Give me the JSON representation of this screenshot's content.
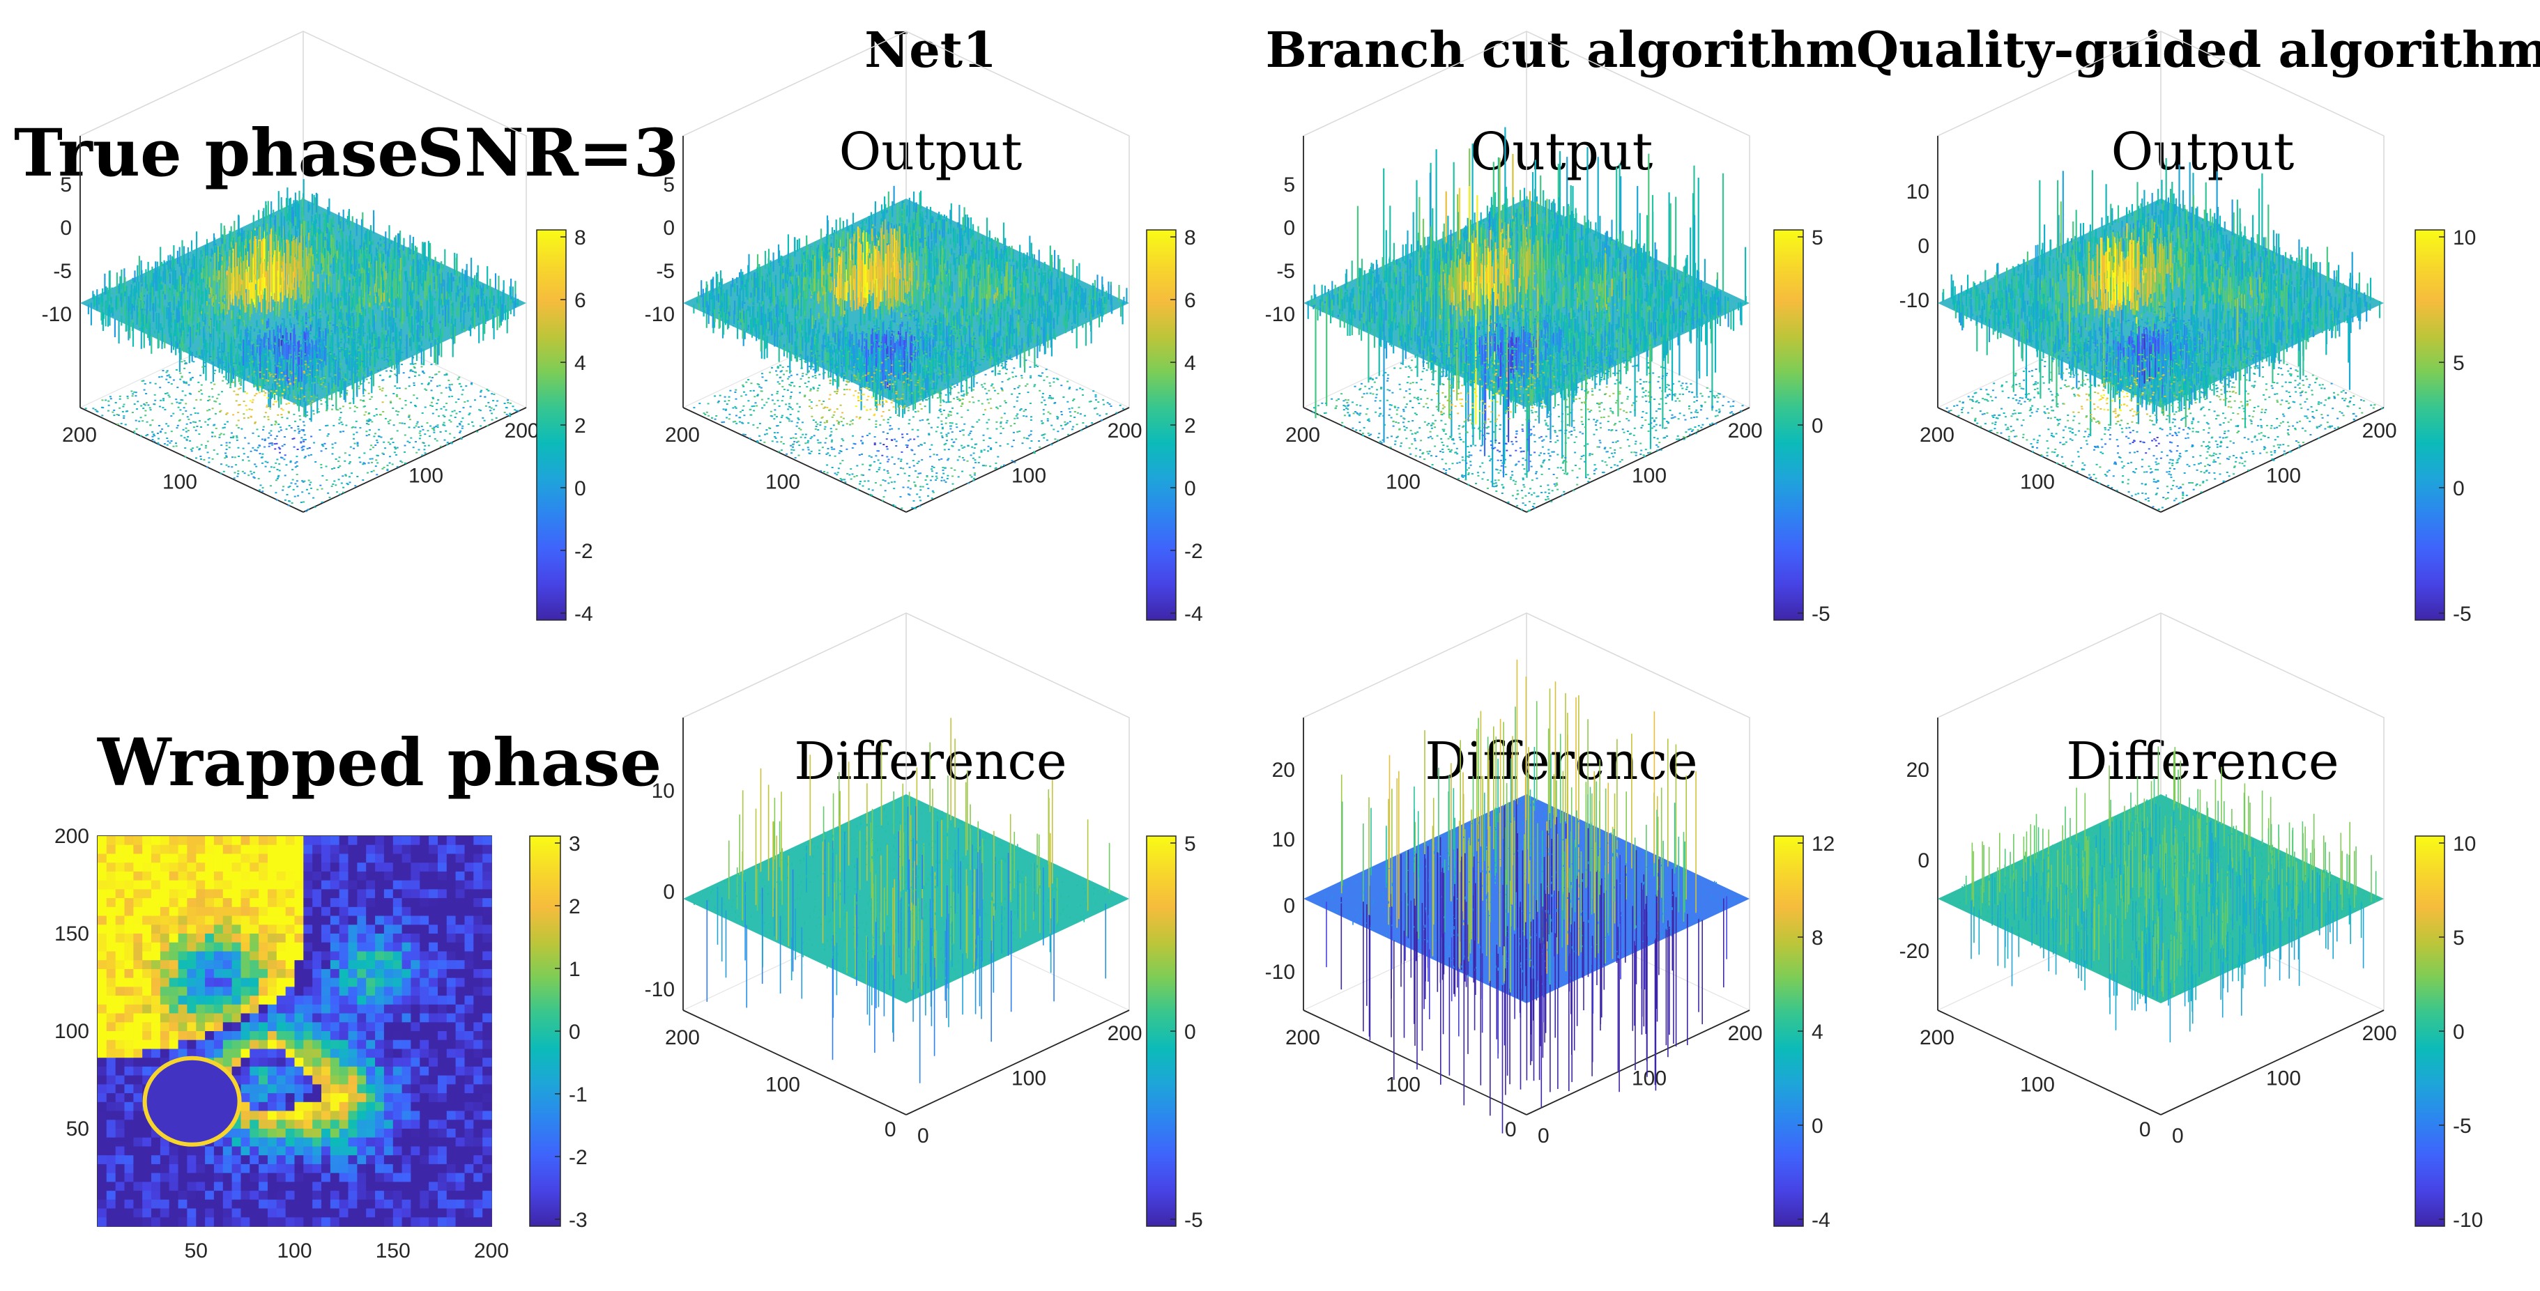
{
  "col_titles": [
    "Net1",
    "Branch cut algorithm",
    "Quality-guided algorithm"
  ],
  "row_titles": {
    "true_phase": "True phase",
    "snr": "SNR=3",
    "wrapped_phase": "Wrapped phase"
  },
  "sub_titles": {
    "output": "Output",
    "difference": "Difference"
  },
  "colors": {
    "parula": [
      "#3e26a8",
      "#4743e5",
      "#3f63fc",
      "#2d85f0",
      "#1ea5d9",
      "#0cbbb9",
      "#37c68f",
      "#7ccd57",
      "#bec539",
      "#f6bc3d",
      "#f7d82b",
      "#f9fb15"
    ]
  },
  "chart_data": [
    {
      "id": "true-phase",
      "type": "surface3d",
      "zticks": [
        "5",
        "0",
        "-5",
        "-10"
      ],
      "xticks": [
        "100",
        "200"
      ],
      "yticks": [
        "200",
        "100"
      ],
      "cbar_ticks": [
        "8",
        "6",
        "4",
        "2",
        "0",
        "-2",
        "-4"
      ],
      "peaks": [
        [
          0.42,
          0.38,
          0.5
        ],
        [
          0.62,
          0.32,
          0.35
        ],
        [
          0.3,
          0.62,
          -0.25
        ],
        [
          0.7,
          0.65,
          0.2
        ]
      ]
    },
    {
      "id": "wrapped-phase",
      "type": "heatmap",
      "xticks": [
        "50",
        "100",
        "150",
        "200"
      ],
      "yticks": [
        "200",
        "150",
        "100",
        "50"
      ],
      "cbar_ticks": [
        "3",
        "2",
        "1",
        "0",
        "-1",
        "-2",
        "-3"
      ]
    },
    {
      "id": "net1-output",
      "type": "surface3d",
      "zticks": [
        "5",
        "0",
        "-5",
        "-10"
      ],
      "xticks": [
        "100",
        "200"
      ],
      "yticks": [
        "200",
        "100"
      ],
      "cbar_ticks": [
        "8",
        "6",
        "4",
        "2",
        "0",
        "-2",
        "-4"
      ]
    },
    {
      "id": "net1-difference",
      "type": "surface3d",
      "zticks": [
        "10",
        "0",
        "-10"
      ],
      "xticks": [
        "100",
        "200"
      ],
      "yticks": [
        "200",
        "100",
        "0"
      ],
      "extra_x0": "0",
      "cbar_ticks": [
        "5",
        "0",
        "-5"
      ]
    },
    {
      "id": "branch-output",
      "type": "surface3d",
      "zticks": [
        "5",
        "0",
        "-5",
        "-10"
      ],
      "xticks": [
        "100",
        "200"
      ],
      "yticks": [
        "200",
        "100"
      ],
      "cbar_ticks": [
        "5",
        "0",
        "-5"
      ]
    },
    {
      "id": "branch-difference",
      "type": "surface3d",
      "zticks": [
        "20",
        "10",
        "0",
        "-10"
      ],
      "xticks": [
        "100",
        "200"
      ],
      "yticks": [
        "200",
        "100",
        "0"
      ],
      "extra_x0": "0",
      "cbar_ticks": [
        "12",
        "8",
        "4",
        "0",
        "-4"
      ]
    },
    {
      "id": "quality-output",
      "type": "surface3d",
      "zticks": [
        "10",
        "0",
        "-10"
      ],
      "xticks": [
        "100",
        "200"
      ],
      "yticks": [
        "200",
        "100"
      ],
      "cbar_ticks": [
        "10",
        "5",
        "0",
        "-5"
      ]
    },
    {
      "id": "quality-difference",
      "type": "surface3d",
      "zticks": [
        "20",
        "0",
        "-20"
      ],
      "xticks": [
        "100",
        "200"
      ],
      "yticks": [
        "200",
        "100",
        "0"
      ],
      "extra_x0": "0",
      "cbar_ticks": [
        "10",
        "5",
        "0",
        "-5",
        "-10"
      ]
    }
  ]
}
